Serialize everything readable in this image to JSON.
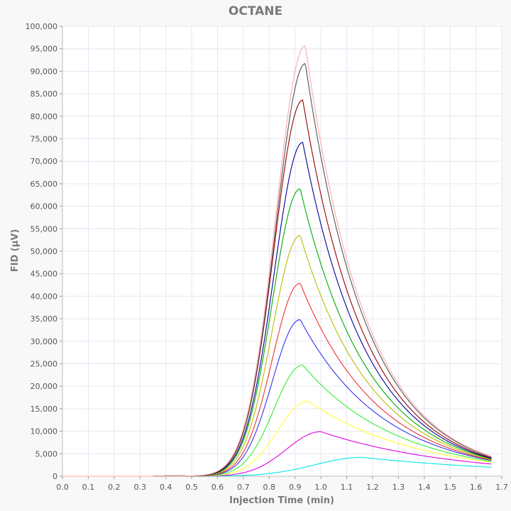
{
  "chart_data": {
    "type": "line",
    "title": "OCTANE",
    "xlabel": "Injection Time (min)",
    "ylabel": "FID (µV)",
    "xlim": [
      0.0,
      1.7
    ],
    "ylim": [
      0,
      100000
    ],
    "x_ticks": [
      "0.0",
      "0.1",
      "0.2",
      "0.3",
      "0.4",
      "0.5",
      "0.6",
      "0.7",
      "0.8",
      "0.9",
      "1.0",
      "1.1",
      "1.2",
      "1.3",
      "1.4",
      "1.5",
      "1.6",
      "1.7"
    ],
    "y_ticks": [
      "0",
      "5,000",
      "10,000",
      "15,000",
      "20,000",
      "25,000",
      "30,000",
      "35,000",
      "40,000",
      "45,000",
      "50,000",
      "55,000",
      "60,000",
      "65,000",
      "70,000",
      "75,000",
      "80,000",
      "85,000",
      "90,000",
      "95,000",
      "100,000"
    ],
    "grid": true,
    "x_end": 1.66,
    "series": [
      {
        "color": "#00e5e5",
        "peak_x": 1.16,
        "peak_y": 4200,
        "end_y": 2000
      },
      {
        "color": "#e000e0",
        "peak_x": 1.0,
        "peak_y": 9900,
        "end_y": 2700
      },
      {
        "color": "#ffff33",
        "peak_x": 0.95,
        "peak_y": 16700,
        "end_y": 3100
      },
      {
        "color": "#33ee33",
        "peak_x": 0.93,
        "peak_y": 24700,
        "end_y": 3300
      },
      {
        "color": "#3333ee",
        "peak_x": 0.92,
        "peak_y": 34800,
        "end_y": 3500
      },
      {
        "color": "#ee3333",
        "peak_x": 0.92,
        "peak_y": 42900,
        "end_y": 3600
      },
      {
        "color": "#bbbb00",
        "peak_x": 0.92,
        "peak_y": 53500,
        "end_y": 3700
      },
      {
        "color": "#00aa00",
        "peak_x": 0.92,
        "peak_y": 63900,
        "end_y": 3850
      },
      {
        "color": "#000099",
        "peak_x": 0.93,
        "peak_y": 74200,
        "end_y": 3950
      },
      {
        "color": "#990000",
        "peak_x": 0.93,
        "peak_y": 83600,
        "end_y": 4100
      },
      {
        "color": "#555555",
        "peak_x": 0.94,
        "peak_y": 91700,
        "end_y": 4300
      },
      {
        "color": "#ffaaaa",
        "peak_x": 0.94,
        "peak_y": 95700,
        "end_y": 4400
      }
    ]
  }
}
